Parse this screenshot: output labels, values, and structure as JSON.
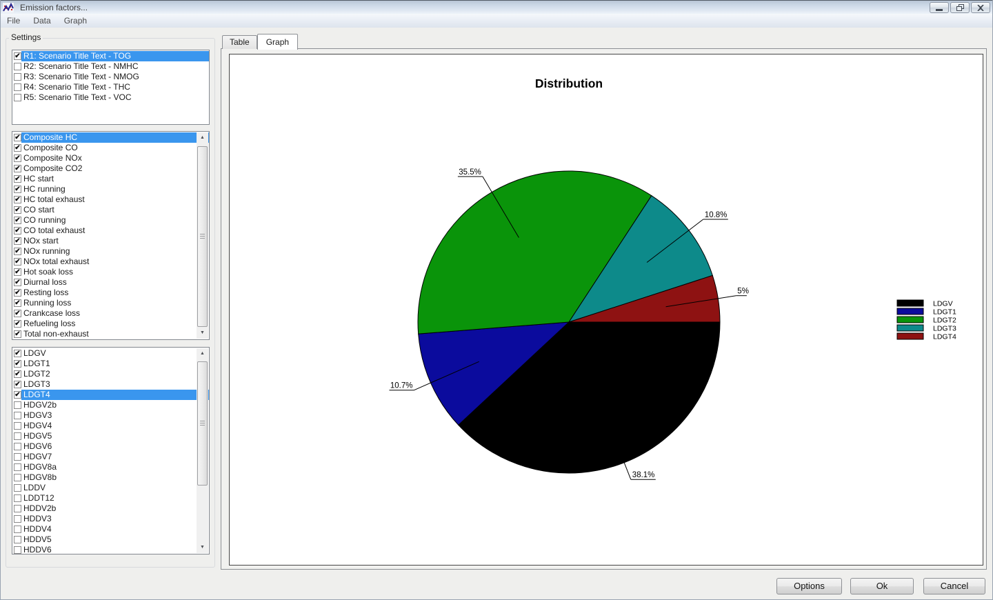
{
  "window": {
    "title": "Emission factors...",
    "controls": [
      {
        "name": "minimize-button",
        "icon": "minimize-icon"
      },
      {
        "name": "restore-button",
        "icon": "restore-icon"
      },
      {
        "name": "close-button",
        "icon": "close-icon"
      }
    ]
  },
  "menu": {
    "items": [
      "File",
      "Data",
      "Graph"
    ]
  },
  "settings": {
    "label": "Settings",
    "scenarios": [
      {
        "label": "R1: Scenario Title Text - TOG",
        "checked": true,
        "selected": true
      },
      {
        "label": "R2: Scenario Title Text - NMHC",
        "checked": false,
        "selected": false
      },
      {
        "label": "R3: Scenario Title Text - NMOG",
        "checked": false,
        "selected": false
      },
      {
        "label": "R4: Scenario Title Text - THC",
        "checked": false,
        "selected": false
      },
      {
        "label": "R5: Scenario Title Text - VOC",
        "checked": false,
        "selected": false
      }
    ],
    "pollutants": [
      {
        "label": "Composite HC",
        "checked": true,
        "selected": true
      },
      {
        "label": "Composite CO",
        "checked": true,
        "selected": false
      },
      {
        "label": "Composite NOx",
        "checked": true,
        "selected": false
      },
      {
        "label": "Composite CO2",
        "checked": true,
        "selected": false
      },
      {
        "label": "HC start",
        "checked": true,
        "selected": false
      },
      {
        "label": "HC running",
        "checked": true,
        "selected": false
      },
      {
        "label": "HC total exhaust",
        "checked": true,
        "selected": false
      },
      {
        "label": "CO start",
        "checked": true,
        "selected": false
      },
      {
        "label": "CO running",
        "checked": true,
        "selected": false
      },
      {
        "label": "CO total exhaust",
        "checked": true,
        "selected": false
      },
      {
        "label": "NOx start",
        "checked": true,
        "selected": false
      },
      {
        "label": "NOx running",
        "checked": true,
        "selected": false
      },
      {
        "label": "NOx total exhaust",
        "checked": true,
        "selected": false
      },
      {
        "label": "Hot soak loss",
        "checked": true,
        "selected": false
      },
      {
        "label": "Diurnal loss",
        "checked": true,
        "selected": false
      },
      {
        "label": "Resting loss",
        "checked": true,
        "selected": false
      },
      {
        "label": "Running loss",
        "checked": true,
        "selected": false
      },
      {
        "label": "Crankcase loss",
        "checked": true,
        "selected": false
      },
      {
        "label": "Refueling loss",
        "checked": true,
        "selected": false
      },
      {
        "label": "Total non-exhaust",
        "checked": true,
        "selected": false
      }
    ],
    "vehicles": [
      {
        "label": "LDGV",
        "checked": true,
        "selected": false
      },
      {
        "label": "LDGT1",
        "checked": true,
        "selected": false
      },
      {
        "label": "LDGT2",
        "checked": true,
        "selected": false
      },
      {
        "label": "LDGT3",
        "checked": true,
        "selected": false
      },
      {
        "label": "LDGT4",
        "checked": true,
        "selected": true
      },
      {
        "label": "HDGV2b",
        "checked": false,
        "selected": false
      },
      {
        "label": "HDGV3",
        "checked": false,
        "selected": false
      },
      {
        "label": "HDGV4",
        "checked": false,
        "selected": false
      },
      {
        "label": "HDGV5",
        "checked": false,
        "selected": false
      },
      {
        "label": "HDGV6",
        "checked": false,
        "selected": false
      },
      {
        "label": "HDGV7",
        "checked": false,
        "selected": false
      },
      {
        "label": "HDGV8a",
        "checked": false,
        "selected": false
      },
      {
        "label": "HDGV8b",
        "checked": false,
        "selected": false
      },
      {
        "label": "LDDV",
        "checked": false,
        "selected": false
      },
      {
        "label": "LDDT12",
        "checked": false,
        "selected": false
      },
      {
        "label": "HDDV2b",
        "checked": false,
        "selected": false
      },
      {
        "label": "HDDV3",
        "checked": false,
        "selected": false
      },
      {
        "label": "HDDV4",
        "checked": false,
        "selected": false
      },
      {
        "label": "HDDV5",
        "checked": false,
        "selected": false
      },
      {
        "label": "HDDV6",
        "checked": false,
        "selected": false
      }
    ]
  },
  "tabs": [
    {
      "label": "Table",
      "active": false
    },
    {
      "label": "Graph",
      "active": true
    }
  ],
  "chart_data": {
    "type": "pie",
    "title": "Distribution",
    "slices": [
      {
        "label": "LDGV",
        "value": 38.1,
        "display": "38.1%",
        "color": "#000000"
      },
      {
        "label": "LDGT1",
        "value": 10.7,
        "display": "10.7%",
        "color": "#0b0b9d"
      },
      {
        "label": "LDGT2",
        "value": 35.5,
        "display": "35.5%",
        "color": "#0a940a"
      },
      {
        "label": "LDGT3",
        "value": 10.8,
        "display": "10.8%",
        "color": "#0d8a8a"
      },
      {
        "label": "LDGT4",
        "value": 5,
        "display": "5%",
        "color": "#8e1212"
      }
    ],
    "start_angle_clockwise_from_east_deg": 0,
    "legend_position": "right",
    "legend_entries": [
      "LDGV",
      "LDGT1",
      "LDGT2",
      "LDGT3",
      "LDGT4"
    ]
  },
  "buttons": [
    {
      "label": "Options"
    },
    {
      "label": "Ok"
    },
    {
      "label": "Cancel"
    }
  ],
  "colors": {
    "selection": "#3a96ee",
    "chart_background": "#ffffff",
    "window_face": "#efefed"
  }
}
